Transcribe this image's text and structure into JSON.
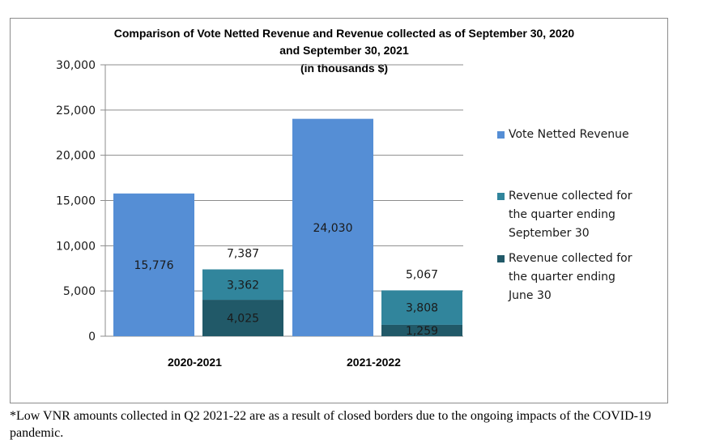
{
  "chart_data": {
    "type": "bar",
    "title_lines": [
      "Comparison  of Vote Netted Revenue and Revenue collected as of September 30, 2020",
      "and September 30, 2021",
      "(in thousands $)"
    ],
    "categories": [
      "2020-2021",
      "2021-2022"
    ],
    "ylim": [
      0,
      30000
    ],
    "yticks": [
      "0",
      "5,000",
      "10,000",
      "15,000",
      "20,000",
      "25,000",
      "30,000"
    ],
    "ytick_values": [
      0,
      5000,
      10000,
      15000,
      20000,
      25000,
      30000
    ],
    "grid": true,
    "legend_position": "right",
    "series": [
      {
        "name": "Vote Netted Revenue",
        "color": "#558ED5",
        "values": [
          15776,
          24030
        ],
        "labels": [
          "15,776",
          "24,030"
        ]
      },
      {
        "name": "Revenue collected for the quarter ending September 30",
        "color": "#31859C",
        "values": [
          3362,
          3808
        ],
        "labels": [
          "3,362",
          "3,808"
        ]
      },
      {
        "name": "Revenue collected for the quarter ending June 30",
        "color": "#215968",
        "values": [
          4025,
          1259
        ],
        "labels": [
          "4,025",
          "1,259"
        ]
      }
    ],
    "stack_totals": [
      "7,387",
      "5,067"
    ],
    "legend": [
      {
        "label": "Vote Netted Revenue",
        "color": "#558ED5"
      },
      {
        "label": "Revenue collected for\nthe quarter ending\nSeptember 30",
        "color": "#31859C"
      },
      {
        "label": "Revenue collected for\nthe quarter ending\nJune 30",
        "color": "#215968"
      }
    ]
  },
  "footnote": "*Low VNR amounts collected in Q2 2021-22 are as a result of closed borders due to the ongoing impacts of the COVID-19 pandemic."
}
